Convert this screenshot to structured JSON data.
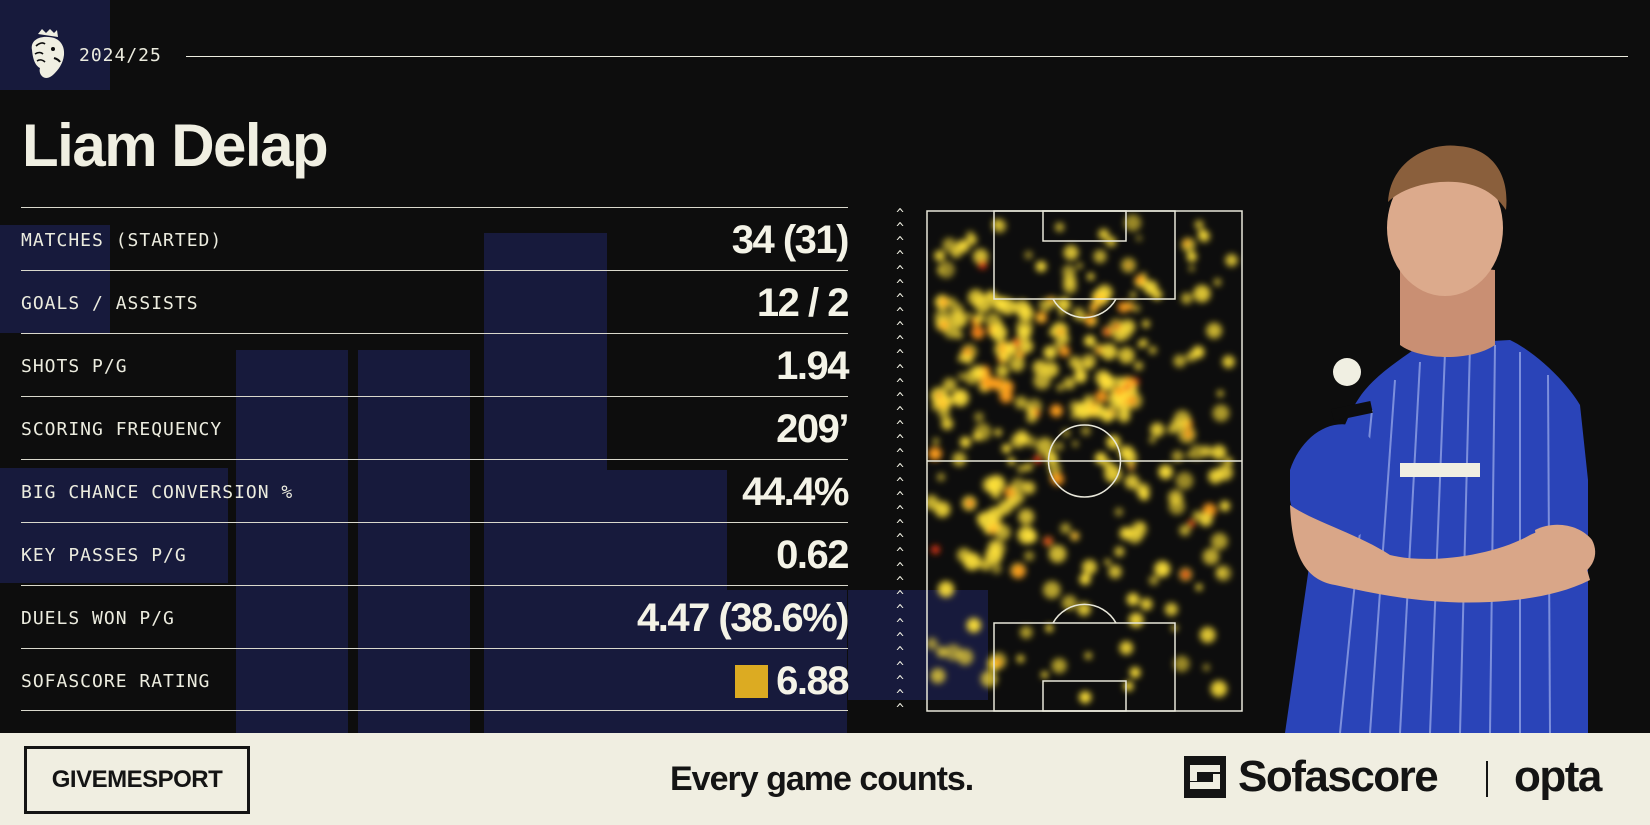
{
  "season": "2024/25",
  "player": {
    "name": "Liam Delap"
  },
  "stats": [
    {
      "label": "MATCHES (STARTED)",
      "value": "34 (31)"
    },
    {
      "label": "GOALS / ASSISTS",
      "value": "12 / 2"
    },
    {
      "label": "SHOTS P/G",
      "value": "1.94"
    },
    {
      "label": "SCORING FREQUENCY",
      "value": "209’"
    },
    {
      "label": "BIG CHANCE CONVERSION %",
      "value": "44.4%"
    },
    {
      "label": "KEY PASSES P/G",
      "value": "0.62"
    },
    {
      "label": "DUELS WON P/G",
      "value": "4.47 (38.6%)"
    },
    {
      "label": "SOFASCORE RATING",
      "value": "6.88"
    }
  ],
  "rating_color": "#dcab22",
  "heatmap_colors": [
    "#ffe23a",
    "#ff9a1a",
    "#e62e12"
  ],
  "footer": {
    "brand": "GIVEMESPORT",
    "slogan": "Every game counts.",
    "partner1": "Sofascore",
    "partner2": "opta"
  },
  "icons": [
    "premier-league-lion-icon",
    "sofascore-logo-icon",
    "attack-direction-arrow-icon"
  ]
}
